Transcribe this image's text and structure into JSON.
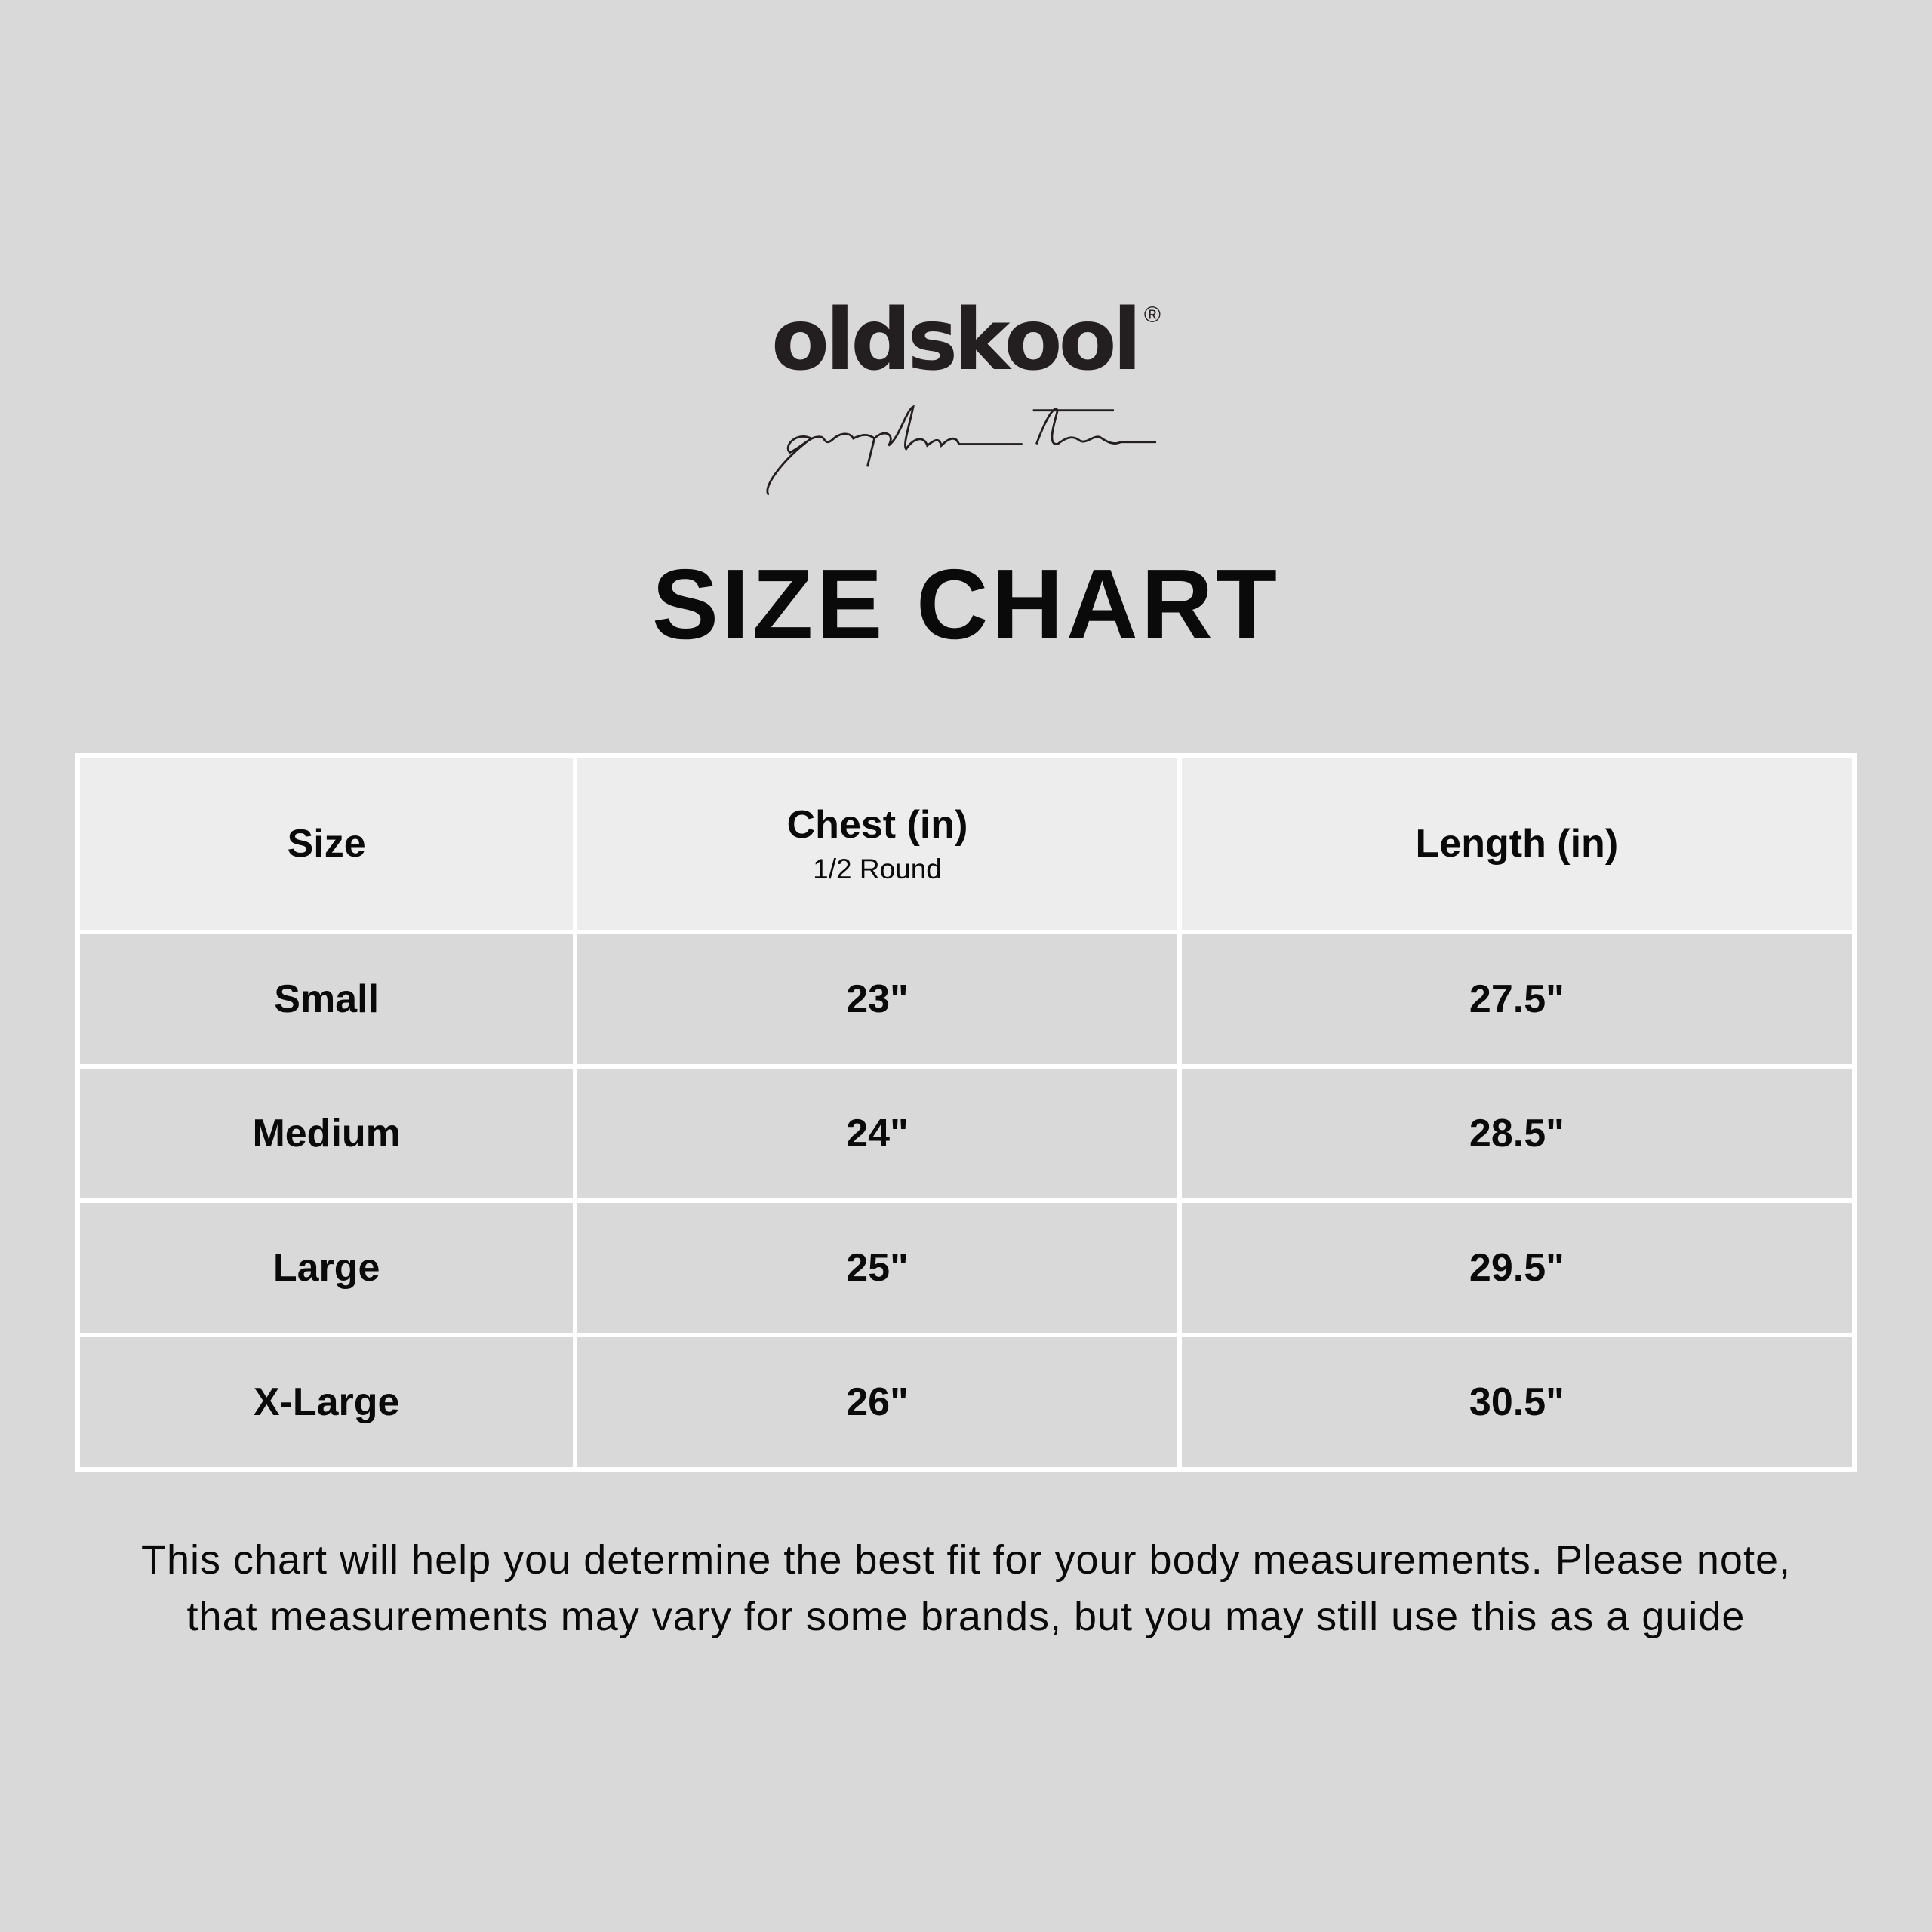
{
  "logo": {
    "brand": "oldskool",
    "registered": "®",
    "tagline": "graphic tee"
  },
  "title": "SIZE CHART",
  "table": {
    "headers": [
      {
        "label": "Size",
        "sub": ""
      },
      {
        "label": "Chest (in)",
        "sub": "1/2 Round"
      },
      {
        "label": "Length (in)",
        "sub": ""
      }
    ],
    "rows": [
      {
        "size": "Small",
        "chest": "23\"",
        "length": "27.5\""
      },
      {
        "size": "Medium",
        "chest": "24\"",
        "length": "28.5\""
      },
      {
        "size": "Large",
        "chest": "25\"",
        "length": "29.5\""
      },
      {
        "size": "X-Large",
        "chest": "26\"",
        "length": "30.5\""
      }
    ]
  },
  "note": "This chart will help you determine the best fit for your body measurements. Please note, that measurements may vary for some brands, but you may still use this as a guide",
  "colors": {
    "background": "#d9d9d9",
    "header_bg": "#ededed",
    "grid": "#ffffff",
    "text": "#0a0a0a"
  }
}
